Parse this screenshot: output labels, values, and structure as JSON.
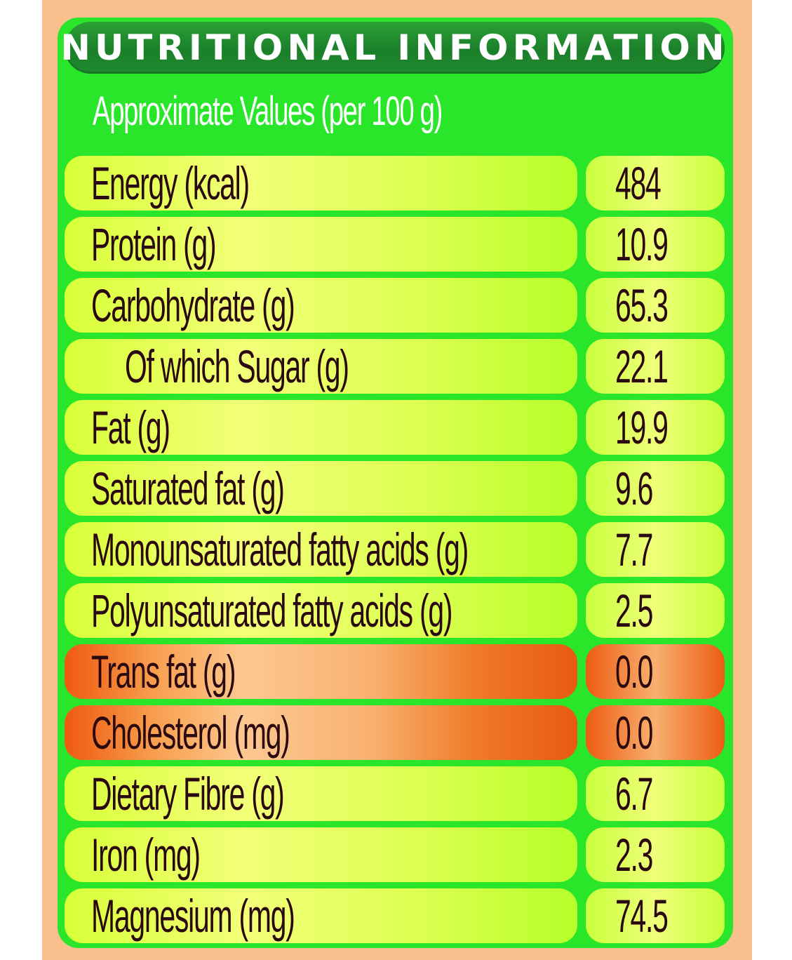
{
  "label": {
    "title": "NUTRITIONAL INFORMATION",
    "subtitle": "Approximate Values (per 100 g)",
    "rows": [
      {
        "name": "Energy (kcal)",
        "value": "484",
        "indent": false,
        "highlight": false
      },
      {
        "name": "Protein (g)",
        "value": "10.9",
        "indent": false,
        "highlight": false
      },
      {
        "name": "Carbohydrate (g)",
        "value": "65.3",
        "indent": false,
        "highlight": false
      },
      {
        "name": "Of which Sugar (g)",
        "value": "22.1",
        "indent": true,
        "highlight": false
      },
      {
        "name": "Fat (g)",
        "value": "19.9",
        "indent": false,
        "highlight": false
      },
      {
        "name": "Saturated fat (g)",
        "value": "9.6",
        "indent": false,
        "highlight": false
      },
      {
        "name": "Monounsaturated fatty acids (g)",
        "value": "7.7",
        "indent": false,
        "highlight": false
      },
      {
        "name": "Polyunsaturated fatty acids (g)",
        "value": "2.5",
        "indent": false,
        "highlight": false
      },
      {
        "name": "Trans fat (g)",
        "value": "0.0",
        "indent": false,
        "highlight": true
      },
      {
        "name": "Cholesterol (mg)",
        "value": "0.0",
        "indent": false,
        "highlight": true
      },
      {
        "name": "Dietary Fibre (g)",
        "value": "6.7",
        "indent": false,
        "highlight": false
      },
      {
        "name": "Iron (mg)",
        "value": "2.3",
        "indent": false,
        "highlight": false
      },
      {
        "name": "Magnesium (mg)",
        "value": "74.5",
        "indent": false,
        "highlight": false
      }
    ]
  },
  "colors": {
    "panel": "#2ae62a",
    "title_bar": "#1b7f2a",
    "row_normal": "#e6ff5a",
    "row_highlight": "#f07a28",
    "text_dark": "#2a0a10",
    "background": "#f8c08c"
  }
}
